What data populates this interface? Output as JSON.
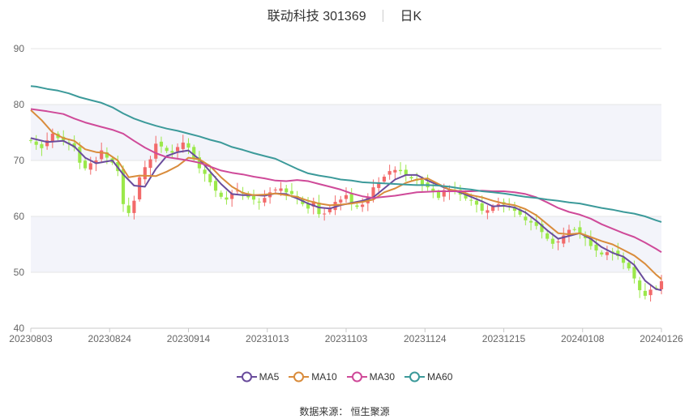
{
  "chart_title": {
    "name": "联动科技 301369",
    "period": "日K"
  },
  "source": {
    "label": "数据来源：",
    "value": "恒生聚源"
  },
  "colors": {
    "up": "#f26a6a",
    "down": "#9be84a",
    "MA5": "#6a4c9c",
    "MA10": "#d98c3c",
    "MA30": "#cf4a99",
    "MA60": "#3c9a9a",
    "band": "#f3f4fa",
    "grid": "#e6e6e6",
    "axis_text": "#666666"
  },
  "chart_data": {
    "type": "candlestick",
    "y_axis": {
      "min": 40,
      "max": 90,
      "ticks": [
        40,
        50,
        60,
        70,
        80,
        90
      ]
    },
    "x_ticks": [
      "20230803",
      "20230824",
      "20230914",
      "20231013",
      "20231103",
      "20231124",
      "20231215",
      "20240108",
      "20240126"
    ],
    "legend": [
      "MA5",
      "MA10",
      "MA30",
      "MA60"
    ],
    "closes": [
      73.5,
      72.8,
      72.2,
      73.6,
      74.8,
      74.0,
      73.6,
      73.2,
      72.3,
      69.6,
      68.6,
      69.5,
      70.0,
      71.8,
      70.5,
      69.6,
      68.1,
      62.2,
      60.6,
      62.8,
      67.0,
      68.8,
      70.2,
      73.0,
      72.5,
      71.7,
      71.4,
      72.4,
      73.2,
      72.3,
      70.2,
      68.6,
      67.6,
      66.1,
      64.6,
      63.5,
      63.0,
      64.1,
      64.6,
      64.1,
      63.4,
      63.0,
      62.6,
      63.3,
      64.3,
      64.8,
      65.0,
      64.3,
      64.0,
      63.3,
      62.2,
      61.4,
      62.7,
      60.4,
      60.5,
      61.5,
      62.6,
      63.0,
      63.8,
      62.2,
      61.7,
      62.1,
      63.5,
      65.2,
      66.1,
      67.1,
      68.1,
      68.3,
      68.1,
      67.4,
      66.8,
      66.4,
      65.7,
      65.2,
      64.4,
      63.3,
      64.7,
      64.9,
      64.6,
      63.9,
      63.2,
      62.8,
      62.1,
      61.0,
      61.1,
      61.8,
      62.2,
      62.1,
      61.7,
      61.0,
      60.3,
      59.3,
      58.9,
      58.3,
      57.2,
      56.0,
      55.1,
      55.5,
      56.6,
      57.6,
      57.7,
      56.9,
      56.1,
      54.7,
      53.9,
      53.2,
      53.6,
      53.5,
      52.9,
      51.7,
      50.7,
      48.9,
      46.8,
      45.8,
      46.9,
      47.2,
      48.4
    ],
    "ma_series": [
      {
        "name": "MA5",
        "points": [
          [
            0,
            74.0
          ],
          [
            3,
            73.3
          ],
          [
            6,
            73.5
          ],
          [
            8,
            72.5
          ],
          [
            10,
            70.5
          ],
          [
            12,
            69.5
          ],
          [
            15,
            70.0
          ],
          [
            17,
            67.5
          ],
          [
            19,
            65.5
          ],
          [
            21,
            65.3
          ],
          [
            23,
            68.5
          ],
          [
            25,
            70.8
          ],
          [
            27,
            71.5
          ],
          [
            29,
            71.8
          ],
          [
            31,
            70.2
          ],
          [
            33,
            68.0
          ],
          [
            35,
            65.8
          ],
          [
            37,
            64.0
          ],
          [
            39,
            63.8
          ],
          [
            41,
            63.8
          ],
          [
            43,
            63.7
          ],
          [
            45,
            64.1
          ],
          [
            47,
            64.0
          ],
          [
            49,
            63.2
          ],
          [
            51,
            62.3
          ],
          [
            53,
            61.6
          ],
          [
            55,
            61.4
          ],
          [
            57,
            62.0
          ],
          [
            59,
            62.4
          ],
          [
            61,
            62.8
          ],
          [
            63,
            63.4
          ],
          [
            65,
            65.0
          ],
          [
            67,
            66.6
          ],
          [
            69,
            67.4
          ],
          [
            71,
            67.4
          ],
          [
            73,
            66.4
          ],
          [
            75,
            65.6
          ],
          [
            77,
            64.8
          ],
          [
            79,
            64.3
          ],
          [
            81,
            63.5
          ],
          [
            83,
            62.7
          ],
          [
            85,
            61.8
          ],
          [
            87,
            61.9
          ],
          [
            89,
            61.6
          ],
          [
            91,
            60.7
          ],
          [
            93,
            59.2
          ],
          [
            95,
            57.5
          ],
          [
            97,
            56.0
          ],
          [
            99,
            56.5
          ],
          [
            101,
            57.0
          ],
          [
            103,
            56.0
          ],
          [
            105,
            54.5
          ],
          [
            107,
            53.5
          ],
          [
            109,
            52.8
          ],
          [
            111,
            51.3
          ],
          [
            113,
            48.5
          ],
          [
            115,
            47.0
          ],
          [
            116,
            46.8
          ]
        ]
      },
      {
        "name": "MA10",
        "points": [
          [
            0,
            79.0
          ],
          [
            2,
            77.2
          ],
          [
            4,
            75.0
          ],
          [
            6,
            74.0
          ],
          [
            8,
            73.5
          ],
          [
            10,
            72.0
          ],
          [
            12,
            71.5
          ],
          [
            14,
            71.3
          ],
          [
            16,
            70.0
          ],
          [
            18,
            67.0
          ],
          [
            20,
            67.3
          ],
          [
            23,
            67.2
          ],
          [
            25,
            68.0
          ],
          [
            27,
            69.0
          ],
          [
            29,
            70.5
          ],
          [
            31,
            70.2
          ],
          [
            33,
            69.0
          ],
          [
            35,
            67.0
          ],
          [
            37,
            65.3
          ],
          [
            39,
            64.2
          ],
          [
            41,
            63.8
          ],
          [
            43,
            63.9
          ],
          [
            45,
            64.1
          ],
          [
            47,
            63.8
          ],
          [
            49,
            63.5
          ],
          [
            51,
            62.8
          ],
          [
            53,
            62.3
          ],
          [
            55,
            62.0
          ],
          [
            57,
            62.1
          ],
          [
            59,
            62.3
          ],
          [
            61,
            62.6
          ],
          [
            63,
            63.0
          ],
          [
            65,
            64.3
          ],
          [
            67,
            65.0
          ],
          [
            69,
            66.0
          ],
          [
            71,
            66.6
          ],
          [
            73,
            66.8
          ],
          [
            75,
            65.8
          ],
          [
            77,
            64.8
          ],
          [
            79,
            64.5
          ],
          [
            81,
            63.8
          ],
          [
            83,
            63.4
          ],
          [
            85,
            62.8
          ],
          [
            87,
            62.3
          ],
          [
            89,
            62.0
          ],
          [
            91,
            61.3
          ],
          [
            93,
            60.2
          ],
          [
            95,
            58.6
          ],
          [
            97,
            57.0
          ],
          [
            99,
            56.8
          ],
          [
            101,
            57.0
          ],
          [
            103,
            56.3
          ],
          [
            105,
            55.6
          ],
          [
            107,
            55.0
          ],
          [
            109,
            54.0
          ],
          [
            111,
            53.0
          ],
          [
            113,
            51.5
          ],
          [
            115,
            49.6
          ],
          [
            116,
            48.8
          ]
        ]
      },
      {
        "name": "MA30",
        "points": [
          [
            0,
            79.2
          ],
          [
            3,
            78.8
          ],
          [
            6,
            78.3
          ],
          [
            8,
            77.5
          ],
          [
            10,
            76.8
          ],
          [
            13,
            76.0
          ],
          [
            15,
            75.5
          ],
          [
            17,
            74.8
          ],
          [
            19,
            73.5
          ],
          [
            21,
            72.3
          ],
          [
            23,
            71.3
          ],
          [
            25,
            70.6
          ],
          [
            27,
            70.3
          ],
          [
            29,
            70.0
          ],
          [
            31,
            69.6
          ],
          [
            33,
            68.9
          ],
          [
            35,
            68.2
          ],
          [
            37,
            67.8
          ],
          [
            39,
            67.5
          ],
          [
            41,
            67.1
          ],
          [
            43,
            66.8
          ],
          [
            45,
            66.4
          ],
          [
            47,
            66.3
          ],
          [
            49,
            66.5
          ],
          [
            51,
            66.3
          ],
          [
            53,
            65.8
          ],
          [
            55,
            65.3
          ],
          [
            57,
            64.8
          ],
          [
            59,
            64.1
          ],
          [
            61,
            63.6
          ],
          [
            63,
            63.3
          ],
          [
            65,
            63.5
          ],
          [
            67,
            63.7
          ],
          [
            69,
            64.0
          ],
          [
            71,
            64.3
          ],
          [
            73,
            64.4
          ],
          [
            75,
            64.5
          ],
          [
            77,
            64.5
          ],
          [
            79,
            64.5
          ],
          [
            81,
            64.5
          ],
          [
            83,
            64.6
          ],
          [
            85,
            64.5
          ],
          [
            87,
            64.5
          ],
          [
            89,
            64.3
          ],
          [
            91,
            64.0
          ],
          [
            93,
            63.4
          ],
          [
            95,
            62.5
          ],
          [
            97,
            61.5
          ],
          [
            99,
            60.8
          ],
          [
            101,
            60.3
          ],
          [
            103,
            59.6
          ],
          [
            105,
            58.6
          ],
          [
            107,
            57.8
          ],
          [
            109,
            57.0
          ],
          [
            111,
            56.3
          ],
          [
            113,
            55.3
          ],
          [
            115,
            54.2
          ],
          [
            116,
            53.6
          ]
        ]
      },
      {
        "name": "MA60",
        "points": [
          [
            0,
            83.3
          ],
          [
            1,
            83.2
          ],
          [
            3,
            82.8
          ],
          [
            5,
            82.5
          ],
          [
            7,
            82.0
          ],
          [
            9,
            81.3
          ],
          [
            11,
            80.8
          ],
          [
            13,
            80.3
          ],
          [
            15,
            79.5
          ],
          [
            17,
            78.4
          ],
          [
            19,
            77.5
          ],
          [
            21,
            76.8
          ],
          [
            23,
            76.2
          ],
          [
            25,
            75.7
          ],
          [
            27,
            75.3
          ],
          [
            29,
            74.8
          ],
          [
            31,
            74.3
          ],
          [
            33,
            73.7
          ],
          [
            35,
            73.2
          ],
          [
            37,
            72.4
          ],
          [
            39,
            71.9
          ],
          [
            41,
            71.3
          ],
          [
            43,
            70.8
          ],
          [
            45,
            70.3
          ],
          [
            47,
            69.4
          ],
          [
            49,
            68.5
          ],
          [
            51,
            67.7
          ],
          [
            53,
            67.3
          ],
          [
            55,
            67.0
          ],
          [
            57,
            66.6
          ],
          [
            59,
            66.4
          ],
          [
            61,
            66.1
          ],
          [
            63,
            66.0
          ],
          [
            65,
            65.9
          ],
          [
            67,
            65.8
          ],
          [
            69,
            65.7
          ],
          [
            71,
            65.6
          ],
          [
            73,
            65.6
          ],
          [
            75,
            65.5
          ],
          [
            77,
            65.3
          ],
          [
            79,
            65.0
          ],
          [
            81,
            64.8
          ],
          [
            83,
            64.5
          ],
          [
            85,
            64.3
          ],
          [
            87,
            64.1
          ],
          [
            89,
            63.8
          ],
          [
            91,
            63.5
          ],
          [
            93,
            63.3
          ],
          [
            95,
            63.0
          ],
          [
            97,
            62.8
          ],
          [
            99,
            62.5
          ],
          [
            101,
            62.3
          ],
          [
            103,
            61.9
          ],
          [
            105,
            61.5
          ],
          [
            107,
            61.2
          ],
          [
            109,
            60.8
          ],
          [
            111,
            60.5
          ],
          [
            113,
            60.0
          ],
          [
            115,
            59.3
          ],
          [
            116,
            59.0
          ]
        ]
      }
    ]
  }
}
